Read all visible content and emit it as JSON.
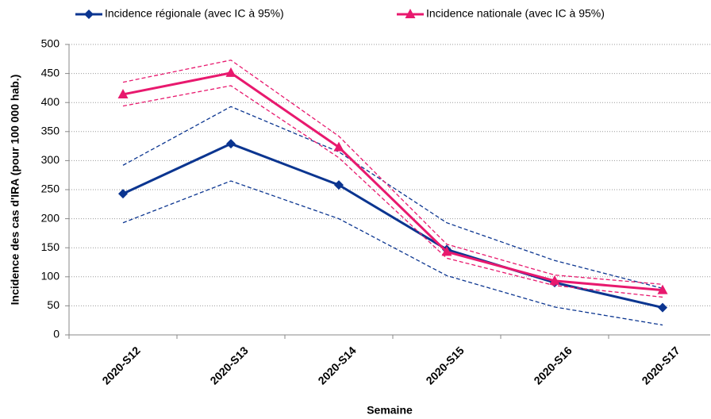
{
  "chart_data": {
    "type": "line",
    "x_label": "Semaine",
    "y_label": "Incidence des cas d'IRA (pour 100 000 hab.)",
    "categories": [
      "2020-S12",
      "2020-S13",
      "2020-S14",
      "2020-S15",
      "2020-S16",
      "2020-S17"
    ],
    "series": [
      {
        "name": "Incidence régionale (avec IC à 95%)",
        "color": "#0b3590",
        "marker": "diamond",
        "values": [
          243,
          329,
          258,
          147,
          90,
          47
        ],
        "ci_lower": [
          193,
          265,
          200,
          102,
          48,
          17
        ],
        "ci_upper": [
          292,
          393,
          315,
          193,
          128,
          80
        ]
      },
      {
        "name": "Incidence nationale (avec IC à 95%)",
        "color": "#e8196e",
        "marker": "triangle",
        "values": [
          414,
          451,
          323,
          143,
          93,
          77
        ],
        "ci_lower": [
          394,
          429,
          305,
          132,
          85,
          65
        ],
        "ci_upper": [
          435,
          473,
          342,
          156,
          103,
          87
        ]
      }
    ],
    "ylim": [
      0,
      500
    ],
    "yticks": [
      0,
      50,
      100,
      150,
      200,
      250,
      300,
      350,
      400,
      450,
      500
    ],
    "grid": true
  }
}
